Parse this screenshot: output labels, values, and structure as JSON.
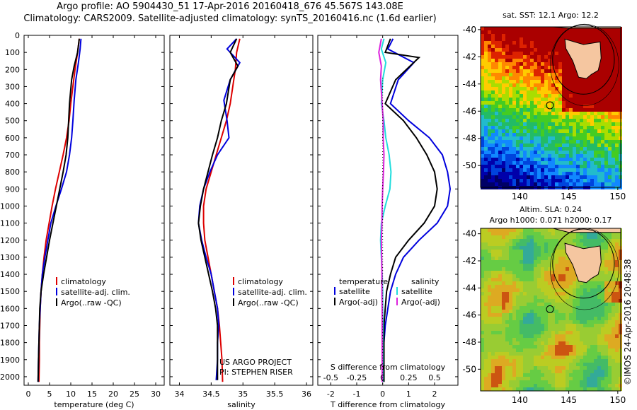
{
  "header": {
    "line1": "Argo profile: AO 5904430_51 17-Apr-2016 20160418_676 45.567S 143.08E",
    "line2": "Climatology: CARS2009. Satellite-adjusted climatology: synTS_20160416.nc (1.6d earlier)"
  },
  "colors": {
    "climatology": "#dd0000",
    "satellite": "#0000dd",
    "argo": "#000000",
    "temp_satellite": "#0000dd",
    "temp_argo": "#000000",
    "sal_satellite": "#22dddd",
    "sal_argo": "#dd22dd"
  },
  "chart_data": [
    {
      "type": "line",
      "id": "temperature-profile",
      "xlabel": "temperature (deg C)",
      "ylabel": "",
      "xlim": [
        -1,
        32
      ],
      "ylim": [
        2050,
        0
      ],
      "xticks": [
        0,
        5,
        10,
        15,
        20,
        25,
        30
      ],
      "yticks": [
        0,
        100,
        200,
        300,
        400,
        500,
        600,
        700,
        800,
        900,
        1000,
        1100,
        1200,
        1300,
        1400,
        1500,
        1600,
        1700,
        1800,
        1900,
        2000
      ],
      "legend": {
        "position": "lower-right",
        "entries": [
          {
            "label": "climatology",
            "color_key": "climatology"
          },
          {
            "label": "satellite-adj. clim.",
            "color_key": "satellite"
          },
          {
            "label": "Argo(..raw -QC)",
            "color_key": "argo"
          }
        ]
      },
      "series": [
        {
          "name": "climatology",
          "color_key": "climatology",
          "x": [
            12.0,
            11.6,
            11.0,
            10.5,
            10.0,
            9.6,
            9.0,
            8.2,
            7.3,
            6.4,
            5.6,
            4.9,
            4.2,
            3.7,
            3.3,
            3.0,
            2.8,
            2.7,
            2.6,
            2.6,
            2.5
          ],
          "y": [
            20,
            100,
            200,
            300,
            400,
            500,
            600,
            700,
            800,
            900,
            1000,
            1100,
            1200,
            1300,
            1400,
            1500,
            1600,
            1700,
            1800,
            1900,
            2030
          ]
        },
        {
          "name": "satellite-adj. clim.",
          "color_key": "satellite",
          "x": [
            12.4,
            12.2,
            11.8,
            11.2,
            10.8,
            10.5,
            10.2,
            9.7,
            9.0,
            7.8,
            6.5,
            5.3,
            4.6,
            3.9,
            3.3,
            3.0,
            2.8,
            2.6,
            2.5,
            2.4,
            2.3
          ],
          "y": [
            20,
            80,
            160,
            260,
            380,
            500,
            600,
            700,
            800,
            900,
            1000,
            1100,
            1200,
            1300,
            1400,
            1500,
            1600,
            1700,
            1800,
            1900,
            2030
          ]
        },
        {
          "name": "Argo(..raw -QC)",
          "color_key": "argo",
          "x": [
            12.0,
            11.6,
            10.8,
            10.2,
            9.7,
            9.5,
            9.3,
            8.9,
            8.2,
            7.4,
            6.6,
            5.8,
            5.0,
            4.3,
            3.6,
            3.0,
            2.7,
            2.6,
            2.5,
            2.4,
            2.3
          ],
          "y": [
            20,
            100,
            180,
            260,
            400,
            500,
            600,
            700,
            800,
            900,
            1000,
            1100,
            1200,
            1300,
            1400,
            1500,
            1600,
            1700,
            1800,
            1900,
            2030
          ]
        }
      ]
    },
    {
      "type": "line",
      "id": "salinity-profile",
      "xlabel": "salinity",
      "ylabel": "",
      "xlim": [
        33.85,
        36.1
      ],
      "ylim": [
        2050,
        0
      ],
      "xticks": [
        34,
        34.5,
        35,
        35.5,
        36
      ],
      "legend": {
        "position": "lower-right",
        "entries": [
          {
            "label": "climatology",
            "color_key": "climatology"
          },
          {
            "label": "satellite-adj. clim.",
            "color_key": "satellite"
          },
          {
            "label": "Argo(..raw -QC)",
            "color_key": "argo"
          }
        ]
      },
      "annotations": [
        "US ARGO PROJECT",
        "PI: STEPHEN RISER"
      ],
      "series": [
        {
          "name": "climatology",
          "color_key": "climatology",
          "x": [
            34.95,
            34.9,
            34.88,
            34.84,
            34.8,
            34.74,
            34.66,
            34.58,
            34.5,
            34.42,
            34.38,
            34.38,
            34.4,
            34.45,
            34.5,
            34.55,
            34.6,
            34.63,
            34.65,
            34.67,
            34.68
          ],
          "y": [
            20,
            100,
            200,
            300,
            400,
            500,
            600,
            700,
            800,
            900,
            1000,
            1100,
            1200,
            1300,
            1400,
            1500,
            1600,
            1700,
            1800,
            1900,
            2030
          ]
        },
        {
          "name": "satellite-adj. clim.",
          "color_key": "satellite",
          "x": [
            34.9,
            34.75,
            34.95,
            34.8,
            34.7,
            34.75,
            34.78,
            34.6,
            34.48,
            34.38,
            34.32,
            34.3,
            34.35,
            34.42,
            34.5,
            34.55,
            34.6,
            34.62,
            34.6,
            34.6,
            34.58
          ],
          "y": [
            20,
            80,
            160,
            260,
            380,
            500,
            600,
            700,
            800,
            900,
            1000,
            1100,
            1200,
            1300,
            1400,
            1500,
            1600,
            1700,
            1800,
            1900,
            2020
          ]
        },
        {
          "name": "Argo(..raw -QC)",
          "color_key": "argo",
          "x": [
            34.9,
            34.8,
            34.92,
            34.8,
            34.74,
            34.66,
            34.6,
            34.52,
            34.45,
            34.38,
            34.33,
            34.3,
            34.34,
            34.4,
            34.46,
            34.52,
            34.57,
            34.6,
            34.6,
            34.6,
            34.6
          ],
          "y": [
            20,
            100,
            180,
            260,
            400,
            500,
            600,
            700,
            800,
            900,
            1000,
            1100,
            1200,
            1300,
            1400,
            1500,
            1600,
            1700,
            1800,
            1900,
            2020
          ]
        }
      ]
    },
    {
      "type": "line",
      "id": "difference-profile",
      "xlabel": "T difference from climatology",
      "xlabel_top": "S difference from climatology",
      "xlim": [
        -2.5,
        2.9
      ],
      "ylim": [
        2050,
        0
      ],
      "xticks": [
        -2,
        -1,
        0,
        1,
        2
      ],
      "sticks": [
        -0.5,
        -0.25,
        0,
        0.25,
        0.5
      ],
      "legend": {
        "position": "lower-center",
        "temperature_title": "temperature",
        "salinity_title": "salinity",
        "temperature": [
          {
            "label": "satellite",
            "color_key": "temp_satellite"
          },
          {
            "label": "Argo(-adj)",
            "color_key": "temp_argo"
          }
        ],
        "salinity": [
          {
            "label": "satellite",
            "color_key": "sal_satellite"
          },
          {
            "label": "Argo(-adj)",
            "color_key": "sal_argo"
          }
        ]
      },
      "series": [
        {
          "name": "temperature satellite",
          "color_key": "temp_satellite",
          "x": [
            0.4,
            0.2,
            1.2,
            0.6,
            0.3,
            1.0,
            1.8,
            2.3,
            2.5,
            2.6,
            2.5,
            2.1,
            1.4,
            0.8,
            0.5,
            0.3,
            0.2,
            0.1,
            0.05,
            0.05,
            0.0
          ],
          "y": [
            20,
            80,
            160,
            260,
            400,
            500,
            600,
            700,
            800,
            900,
            1000,
            1100,
            1200,
            1300,
            1400,
            1500,
            1600,
            1700,
            1800,
            1900,
            2030
          ]
        },
        {
          "name": "temperature Argo(-adj)",
          "color_key": "temp_argo",
          "x": [
            0.3,
            0.1,
            1.4,
            0.5,
            0.1,
            0.8,
            1.3,
            1.7,
            2.0,
            2.1,
            2.0,
            1.6,
            1.0,
            0.5,
            0.3,
            0.15,
            0.1,
            0.05,
            0.05,
            0.05,
            0.05
          ],
          "y": [
            20,
            100,
            130,
            260,
            400,
            500,
            600,
            700,
            800,
            900,
            1000,
            1100,
            1200,
            1300,
            1400,
            1500,
            1600,
            1700,
            1800,
            1900,
            2030
          ]
        },
        {
          "name": "salinity satellite",
          "color_key": "sal_satellite",
          "x": [
            0.05,
            -0.05,
            0.12,
            0.0,
            -0.05,
            0.05,
            0.12,
            0.25,
            0.32,
            0.28,
            0.1,
            -0.05,
            -0.08,
            -0.05,
            -0.02,
            0.0,
            0.0,
            0.01,
            0.0,
            0.0,
            0.0
          ],
          "y": [
            20,
            80,
            160,
            260,
            400,
            500,
            600,
            700,
            800,
            900,
            1000,
            1100,
            1200,
            1300,
            1400,
            1500,
            1600,
            1700,
            1800,
            1900,
            2030
          ]
        },
        {
          "name": "salinity Argo(-adj)",
          "color_key": "sal_argo",
          "x": [
            -0.05,
            -0.15,
            -0.05,
            -0.08,
            -0.02,
            0.02,
            0.02,
            0.05,
            0.03,
            0.0,
            -0.02,
            -0.03,
            -0.05,
            -0.04,
            -0.03,
            -0.03,
            -0.02,
            -0.02,
            -0.02,
            -0.02,
            -0.02
          ],
          "y": [
            20,
            100,
            180,
            260,
            400,
            500,
            600,
            700,
            800,
            900,
            1000,
            1100,
            1200,
            1300,
            1400,
            1500,
            1600,
            1700,
            1800,
            1900,
            2030
          ]
        }
      ]
    },
    {
      "type": "heatmap",
      "id": "sst-map",
      "title": "sat. SST: 12.1  Argo: 12.2",
      "xlim": [
        136,
        150.3
      ],
      "ylim": [
        -51.6,
        -39.8
      ],
      "xticks": [
        140,
        145,
        150
      ],
      "yticks": [
        -40,
        -42,
        -44,
        -46,
        -48,
        -50
      ],
      "argo_location": [
        143.08,
        -45.567
      ]
    },
    {
      "type": "heatmap",
      "id": "sla-map",
      "title_lines": [
        "Altim. SLA: 0.24",
        "Argo h1000: 0.071 h2000: 0.17"
      ],
      "xlim": [
        136,
        150.3
      ],
      "ylim": [
        -51.6,
        -39.6
      ],
      "xticks": [
        140,
        145,
        150
      ],
      "yticks": [
        -40,
        -42,
        -44,
        -46,
        -48,
        -50
      ],
      "argo_location": [
        143.08,
        -45.567
      ]
    }
  ],
  "credit": "©IMOS 24-Apr-2016 20:48:38"
}
